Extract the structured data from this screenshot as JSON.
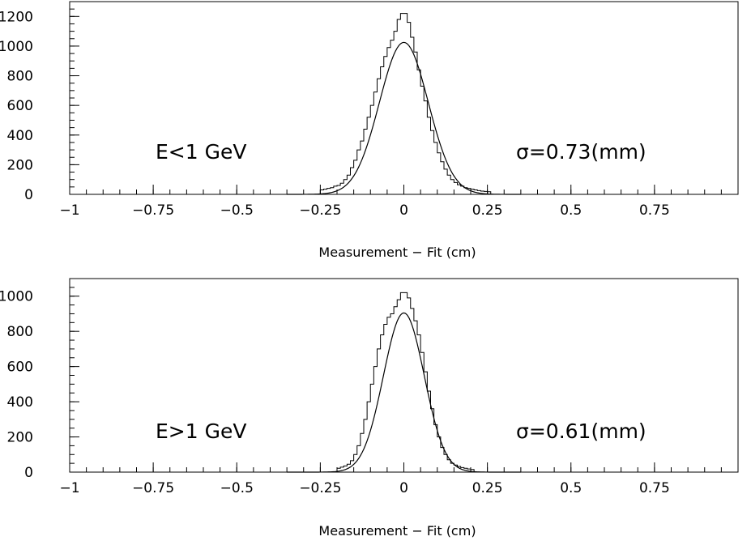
{
  "chart_data": [
    {
      "type": "histogram",
      "xlabel": "Measurement − Fit (cm)",
      "ylabel": "",
      "xlim": [
        -1,
        1
      ],
      "ylim": [
        0,
        1300
      ],
      "xticks": [
        -1,
        -0.75,
        -0.5,
        -0.25,
        0,
        0.25,
        0.5,
        0.75
      ],
      "xtick_labels": [
        "−1",
        "−0.75",
        "−0.5",
        "−0.25",
        "0",
        "0.25",
        "0.5",
        "0.75"
      ],
      "yticks": [
        0,
        200,
        400,
        600,
        800,
        1000,
        1200
      ],
      "ytick_labels": [
        "0",
        "200",
        "400",
        "600",
        "800",
        "1000",
        "1200"
      ],
      "grid": false,
      "annotations": [
        "E<1 GeV",
        "σ=0.73(mm)"
      ],
      "bin_width": 0.01,
      "histogram": {
        "x": [
          -0.25,
          -0.24,
          -0.23,
          -0.22,
          -0.21,
          -0.2,
          -0.19,
          -0.18,
          -0.17,
          -0.16,
          -0.15,
          -0.14,
          -0.13,
          -0.12,
          -0.11,
          -0.1,
          -0.09,
          -0.08,
          -0.07,
          -0.06,
          -0.05,
          -0.04,
          -0.03,
          -0.02,
          -0.01,
          0,
          0.01,
          0.02,
          0.03,
          0.04,
          0.05,
          0.06,
          0.07,
          0.08,
          0.09,
          0.1,
          0.11,
          0.12,
          0.13,
          0.14,
          0.15,
          0.16,
          0.17,
          0.18,
          0.19,
          0.2,
          0.21,
          0.22,
          0.23,
          0.24,
          0.25
        ],
        "counts": [
          30,
          35,
          40,
          45,
          55,
          60,
          75,
          100,
          130,
          180,
          230,
          300,
          360,
          440,
          520,
          600,
          690,
          780,
          860,
          930,
          990,
          1040,
          1100,
          1180,
          1220,
          1220,
          1160,
          1060,
          960,
          840,
          730,
          630,
          520,
          430,
          350,
          280,
          220,
          170,
          130,
          100,
          80,
          65,
          55,
          45,
          40,
          35,
          30,
          25,
          22,
          20,
          18
        ]
      },
      "fit": {
        "function": "gaussian",
        "amplitude": 1025,
        "mean": 0,
        "sigma_cm": 0.073
      }
    },
    {
      "type": "histogram",
      "xlabel": "Measurement − Fit (cm)",
      "ylabel": "",
      "xlim": [
        -1,
        1
      ],
      "ylim": [
        0,
        1100
      ],
      "xticks": [
        -1,
        -0.75,
        -0.5,
        -0.25,
        0,
        0.25,
        0.5,
        0.75
      ],
      "xtick_labels": [
        "−1",
        "−0.75",
        "−0.5",
        "−0.25",
        "0",
        "0.25",
        "0.5",
        "0.75"
      ],
      "yticks": [
        0,
        200,
        400,
        600,
        800,
        1000
      ],
      "ytick_labels": [
        "0",
        "200",
        "400",
        "600",
        "800",
        "1000"
      ],
      "grid": false,
      "annotations": [
        "E>1 GeV",
        "σ=0.61(mm)"
      ],
      "bin_width": 0.01,
      "histogram": {
        "x": [
          -0.2,
          -0.19,
          -0.18,
          -0.17,
          -0.16,
          -0.15,
          -0.14,
          -0.13,
          -0.12,
          -0.11,
          -0.1,
          -0.09,
          -0.08,
          -0.07,
          -0.06,
          -0.05,
          -0.04,
          -0.03,
          -0.02,
          -0.01,
          0,
          0.01,
          0.02,
          0.03,
          0.04,
          0.05,
          0.06,
          0.07,
          0.08,
          0.09,
          0.1,
          0.11,
          0.12,
          0.13,
          0.14,
          0.15,
          0.16,
          0.17,
          0.18,
          0.19,
          0.2
        ],
        "counts": [
          22,
          28,
          35,
          45,
          65,
          100,
          150,
          220,
          300,
          400,
          500,
          600,
          700,
          780,
          840,
          880,
          900,
          940,
          980,
          1020,
          1020,
          990,
          930,
          860,
          780,
          680,
          570,
          460,
          360,
          270,
          200,
          140,
          100,
          70,
          50,
          40,
          32,
          26,
          22,
          18,
          15
        ]
      },
      "fit": {
        "function": "gaussian",
        "amplitude": 905,
        "mean": 0,
        "sigma_cm": 0.061
      }
    }
  ]
}
